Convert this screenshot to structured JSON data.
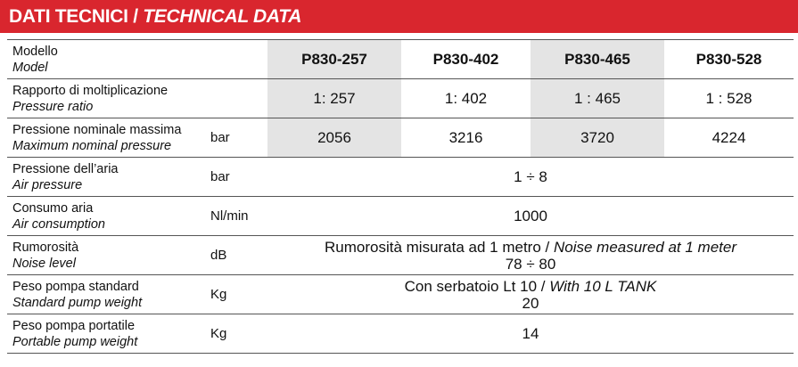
{
  "header": {
    "title_it": "DATI TECNICI / ",
    "title_en": "TECHNICAL DATA"
  },
  "table": {
    "head": {
      "label_it": "Modello",
      "label_en": "Model",
      "models": [
        "P830-257",
        "P830-402",
        "P830-465",
        "P830-528"
      ]
    },
    "rows": [
      {
        "label_it": "Rapporto di moltiplicazione",
        "label_en": "Pressure ratio",
        "values": [
          "1: 257",
          "1: 402",
          "1 : 465",
          "1 : 528"
        ]
      },
      {
        "label_it": "Pressione nominale massima",
        "label_en": "Maximum nominal pressure",
        "unit": "bar",
        "values": [
          "2056",
          "3216",
          "3720",
          "4224"
        ]
      },
      {
        "label_it": "Pressione dell’aria",
        "label_en": "Air pressure",
        "unit": "bar",
        "value": "1 ÷ 8"
      },
      {
        "label_it": "Consumo aria",
        "label_en": "Air consumption",
        "unit": "Nl/min",
        "value": "1000"
      },
      {
        "label_it": "Rumorosità",
        "label_en": "Noise level",
        "unit": "dB",
        "value_it": "Rumorosità misurata ad 1 metro / ",
        "value_en": "Noise measured at 1 meter",
        "value": "78 ÷ 80"
      },
      {
        "label_it": "Peso pompa standard",
        "label_en": "Standard pump weight",
        "unit": "Kg",
        "value_it": "Con serbatoio Lt 10 / ",
        "value_en": "With 10 L TANK",
        "value": "20"
      },
      {
        "label_it": "Peso pompa portatile",
        "label_en": "Portable pump weight",
        "unit": "Kg",
        "value": "14"
      }
    ]
  }
}
